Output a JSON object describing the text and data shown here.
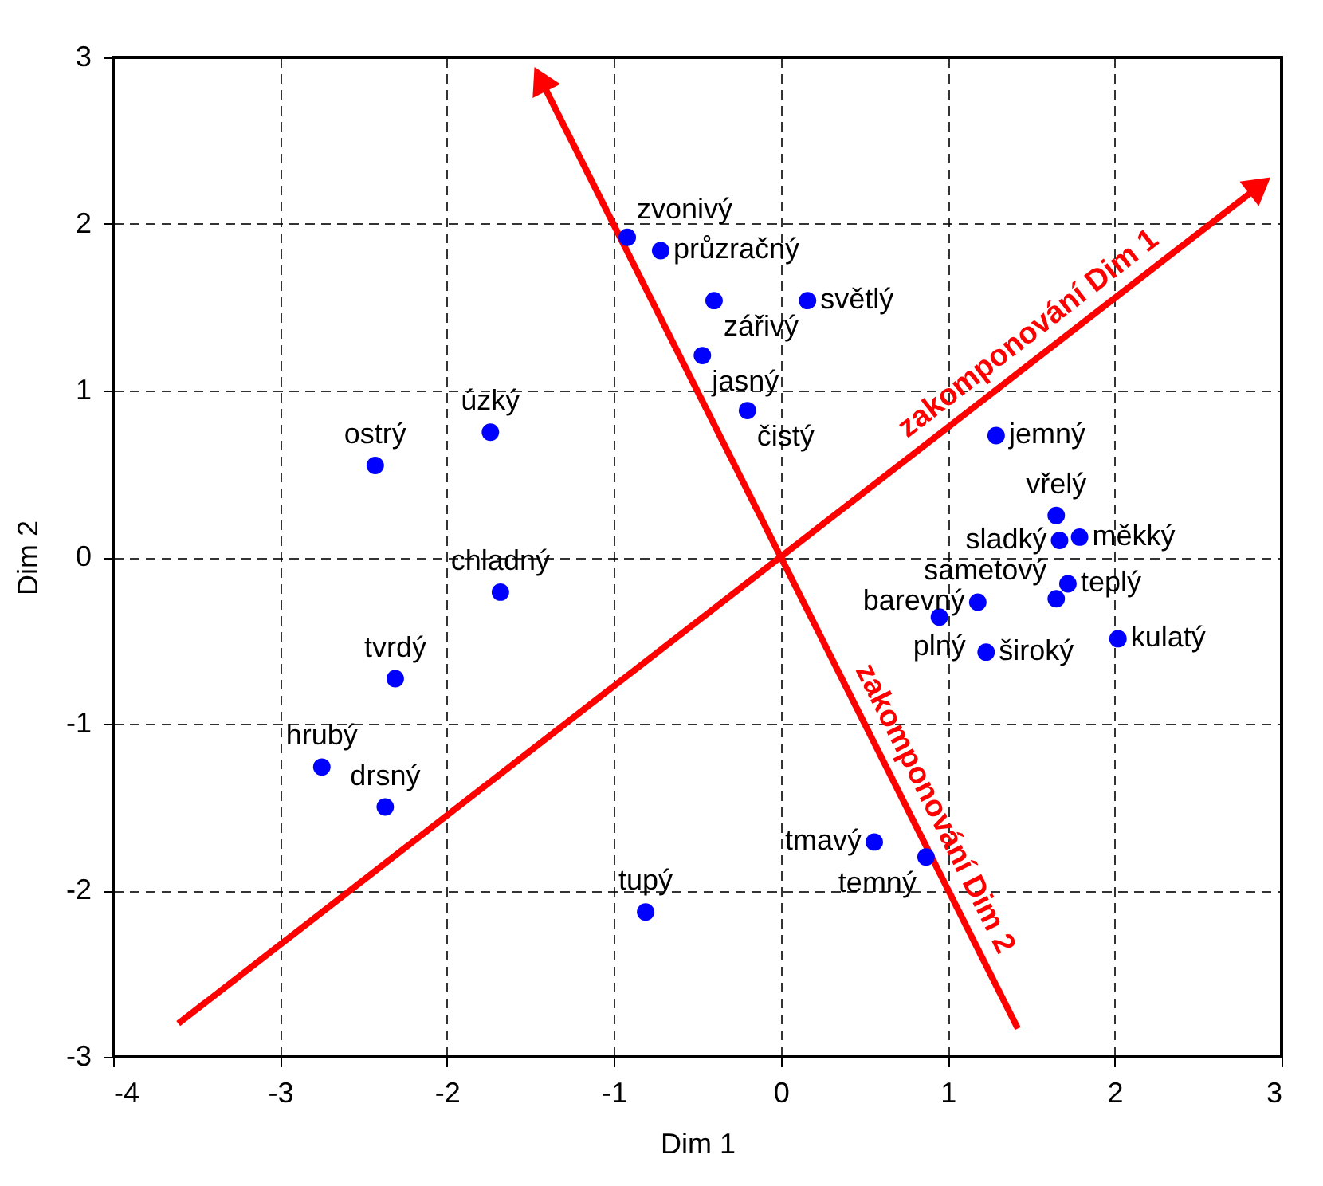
{
  "chart_data": {
    "type": "scatter",
    "xlabel": "Dim 1",
    "ylabel": "Dim 2",
    "xlim": [
      -4,
      3
    ],
    "ylim": [
      -3,
      3
    ],
    "xticks": [
      -4,
      -3,
      -2,
      -1,
      0,
      1,
      2,
      3
    ],
    "yticks": [
      -3,
      -2,
      -1,
      0,
      1,
      2,
      3
    ],
    "grid": true,
    "marker": "circle",
    "series": [
      {
        "type": "scatter",
        "color": "#0000ff",
        "x": [
          -0.92,
          -0.72,
          -0.4,
          0.16,
          -0.47,
          -0.2,
          -1.74,
          -2.43,
          -1.68,
          1.29,
          1.65,
          1.67,
          1.79,
          1.72,
          1.65,
          1.18,
          0.95,
          1.23,
          2.02,
          -2.31,
          -2.75,
          -2.37,
          -0.81,
          0.56,
          0.87
        ],
        "values": [
          1.92,
          1.84,
          1.54,
          1.54,
          1.21,
          0.88,
          0.75,
          0.55,
          -0.21,
          0.73,
          0.25,
          0.1,
          0.12,
          -0.16,
          -0.25,
          -0.27,
          -0.36,
          -0.57,
          -0.49,
          -0.73,
          -1.26,
          -1.5,
          -2.13,
          -1.71,
          -1.8
        ]
      },
      {
        "type": "line",
        "name": "zakomponování Dim 1",
        "color": "#ff0000",
        "marker": "triangle",
        "x": [
          -3.61,
          2.87
        ],
        "values": [
          -2.8,
          2.23
        ]
      },
      {
        "type": "line",
        "name": "zakomponování Dim 2",
        "color": "#ff0000",
        "marker": "triangle",
        "x": [
          1.42,
          -1.44
        ],
        "values": [
          -2.83,
          2.87
        ]
      }
    ],
    "annotations": [
      {
        "text": "zvonivý",
        "x": -0.92,
        "y": 1.92
      },
      {
        "text": "průzračný",
        "x": -0.72,
        "y": 1.84
      },
      {
        "text": "zářivý",
        "x": -0.4,
        "y": 1.54
      },
      {
        "text": "světlý",
        "x": 0.16,
        "y": 1.54
      },
      {
        "text": "jasný",
        "x": -0.47,
        "y": 1.21
      },
      {
        "text": "čistý",
        "x": -0.2,
        "y": 0.88
      },
      {
        "text": "úzký",
        "x": -1.74,
        "y": 0.75
      },
      {
        "text": "ostrý",
        "x": -2.43,
        "y": 0.55
      },
      {
        "text": "chladný",
        "x": -1.68,
        "y": -0.21
      },
      {
        "text": "jemný",
        "x": 1.29,
        "y": 0.73
      },
      {
        "text": "vřelý",
        "x": 1.65,
        "y": 0.25
      },
      {
        "text": "sladký",
        "x": 1.67,
        "y": 0.1
      },
      {
        "text": "měkký",
        "x": 1.79,
        "y": 0.12
      },
      {
        "text": "teplý",
        "x": 1.72,
        "y": -0.16
      },
      {
        "text": "sametový",
        "x": 1.65,
        "y": -0.25
      },
      {
        "text": "barevný",
        "x": 1.18,
        "y": -0.27
      },
      {
        "text": "plný",
        "x": 0.95,
        "y": -0.36
      },
      {
        "text": "široký",
        "x": 1.23,
        "y": -0.57
      },
      {
        "text": "kulatý",
        "x": 2.02,
        "y": -0.49
      },
      {
        "text": "tvrdý",
        "x": -2.31,
        "y": -0.73
      },
      {
        "text": "hrubý",
        "x": -2.75,
        "y": -1.26
      },
      {
        "text": "drsný",
        "x": -2.37,
        "y": -1.5
      },
      {
        "text": "tupý",
        "x": -0.81,
        "y": -2.13
      },
      {
        "text": "tmavý",
        "x": 0.56,
        "y": -1.71
      },
      {
        "text": "temný",
        "x": 0.87,
        "y": -1.8
      }
    ]
  }
}
